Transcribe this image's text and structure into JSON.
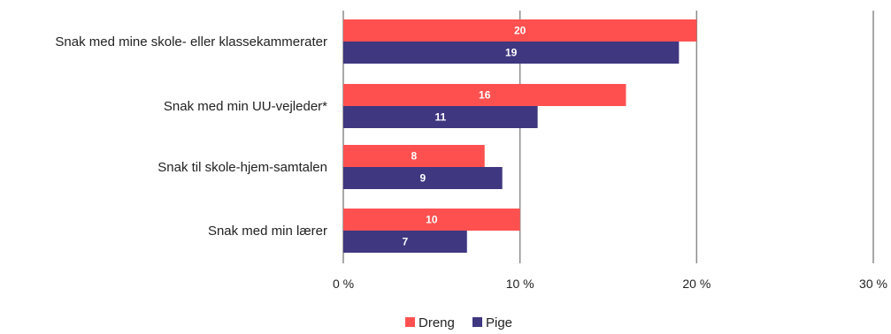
{
  "chart_data": {
    "type": "bar",
    "orientation": "horizontal",
    "categories": [
      "Snak med mine skole- eller klassekammerater",
      "Snak med min UU-vejleder*",
      "Snak til skole-hjem-samtalen",
      "Snak med min lærer"
    ],
    "series": [
      {
        "name": "Dreng",
        "color": "#ff5050",
        "values": [
          20,
          16,
          8,
          10
        ]
      },
      {
        "name": "Pige",
        "color": "#3f3780",
        "values": [
          19,
          11,
          9,
          7
        ]
      }
    ],
    "xlim": [
      0,
      30
    ],
    "xticks": [
      0,
      10,
      20,
      30
    ],
    "tick_suffix": " %",
    "grid": true,
    "data_labels": true,
    "legend": "bottom",
    "gridline_color": "#8c8c8c"
  }
}
